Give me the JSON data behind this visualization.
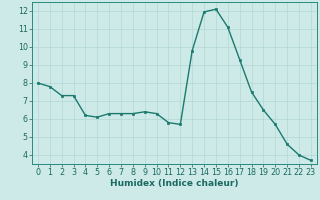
{
  "x": [
    0,
    1,
    2,
    3,
    4,
    5,
    6,
    7,
    8,
    9,
    10,
    11,
    12,
    13,
    14,
    15,
    16,
    17,
    18,
    19,
    20,
    21,
    22,
    23
  ],
  "y": [
    8.0,
    7.8,
    7.3,
    7.3,
    6.2,
    6.1,
    6.3,
    6.3,
    6.3,
    6.4,
    6.3,
    5.8,
    5.7,
    9.8,
    11.95,
    12.1,
    11.1,
    9.3,
    7.5,
    6.5,
    5.7,
    4.6,
    4.0,
    3.7
  ],
  "line_color": "#1a7a6e",
  "marker": "s",
  "marker_size": 2.0,
  "bg_color": "#ceeae8",
  "grid_color": "#b2d8d4",
  "xlabel": "Humidex (Indice chaleur)",
  "ylabel": "",
  "xlim": [
    -0.5,
    23.5
  ],
  "ylim": [
    3.5,
    12.5
  ],
  "yticks": [
    4,
    5,
    6,
    7,
    8,
    9,
    10,
    11,
    12
  ],
  "xticks": [
    0,
    1,
    2,
    3,
    4,
    5,
    6,
    7,
    8,
    9,
    10,
    11,
    12,
    13,
    14,
    15,
    16,
    17,
    18,
    19,
    20,
    21,
    22,
    23
  ],
  "tick_color": "#1a6a60",
  "label_color": "#1a6a60",
  "xlabel_fontsize": 6.5,
  "tick_fontsize": 5.8,
  "linewidth": 1.0,
  "spine_color": "#2a8a7e"
}
